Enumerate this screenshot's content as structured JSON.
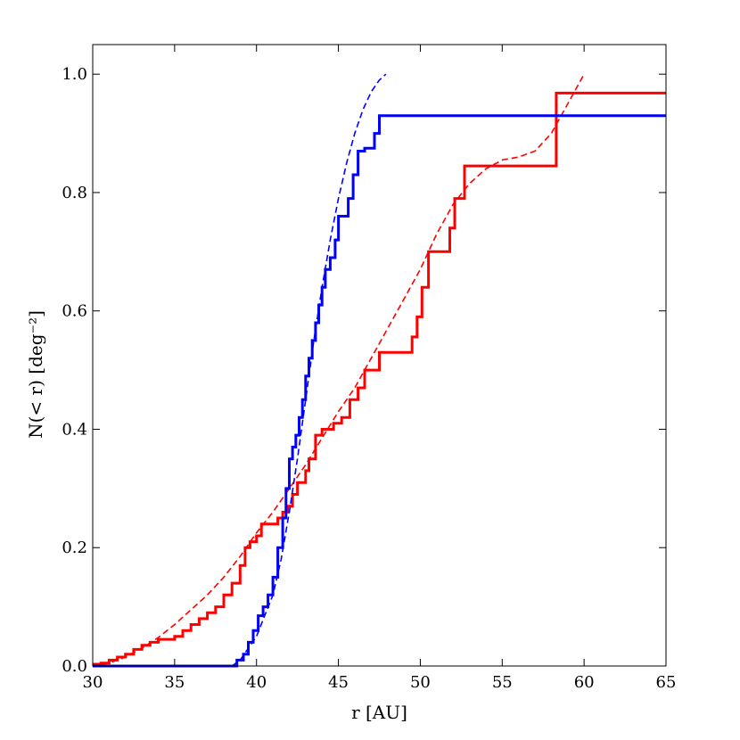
{
  "chart_data": {
    "type": "line",
    "xlabel": "r [AU]",
    "ylabel": "N(< r) [deg⁻²]",
    "xlim": [
      30,
      65
    ],
    "ylim": [
      0,
      1.05
    ],
    "xticks": [
      30,
      35,
      40,
      45,
      50,
      55,
      60,
      65
    ],
    "yticks": [
      0.0,
      0.2,
      0.4,
      0.6,
      0.8,
      1.0
    ],
    "xtick_labels": [
      "30",
      "35",
      "40",
      "45",
      "50",
      "55",
      "60",
      "65"
    ],
    "ytick_labels": [
      "0.0",
      "0.2",
      "0.4",
      "0.6",
      "0.8",
      "1.0"
    ],
    "grid": false,
    "series": [
      {
        "color": "#ff0000",
        "style": "steps-solid",
        "x": [
          30.0,
          30.5,
          31.0,
          31.5,
          32.0,
          32.5,
          33.0,
          33.5,
          34.0,
          34.5,
          35.0,
          35.5,
          36.0,
          36.5,
          37.0,
          37.5,
          38.0,
          38.5,
          39.0,
          39.3,
          39.6,
          40.0,
          40.3,
          40.7,
          41.0,
          41.3,
          41.6,
          41.9,
          42.2,
          42.5,
          43.0,
          43.2,
          43.6,
          44.0,
          44.7,
          45.2,
          45.7,
          46.2,
          46.6,
          47.5,
          49.5,
          49.8,
          50.1,
          50.5,
          51.8,
          52.1,
          52.7,
          58.3,
          65.0
        ],
        "y": [
          0.003,
          0.005,
          0.01,
          0.015,
          0.02,
          0.028,
          0.035,
          0.04,
          0.045,
          0.045,
          0.05,
          0.06,
          0.07,
          0.08,
          0.09,
          0.1,
          0.12,
          0.14,
          0.17,
          0.2,
          0.21,
          0.22,
          0.24,
          0.24,
          0.24,
          0.25,
          0.26,
          0.27,
          0.29,
          0.31,
          0.33,
          0.35,
          0.39,
          0.4,
          0.41,
          0.42,
          0.45,
          0.47,
          0.5,
          0.53,
          0.556,
          0.59,
          0.64,
          0.7,
          0.74,
          0.79,
          0.845,
          0.968,
          0.968
        ]
      },
      {
        "color": "#ff0000",
        "style": "dashed",
        "x": [
          30,
          31,
          32,
          33,
          34,
          35,
          36,
          37,
          38,
          39,
          40,
          41,
          42,
          43,
          44,
          45,
          46,
          47,
          48,
          49,
          50,
          51,
          52,
          53,
          54,
          55,
          56,
          57,
          58,
          59,
          60
        ],
        "y": [
          0.0,
          0.005,
          0.015,
          0.03,
          0.048,
          0.07,
          0.095,
          0.12,
          0.15,
          0.185,
          0.225,
          0.26,
          0.3,
          0.34,
          0.385,
          0.43,
          0.47,
          0.52,
          0.57,
          0.62,
          0.67,
          0.73,
          0.78,
          0.815,
          0.84,
          0.855,
          0.86,
          0.87,
          0.9,
          0.95,
          1.0
        ]
      },
      {
        "color": "#0000ff",
        "style": "steps-solid",
        "x": [
          30.0,
          38.6,
          38.8,
          39.2,
          39.5,
          39.8,
          40.1,
          40.4,
          40.7,
          41.0,
          41.3,
          41.6,
          41.8,
          42.0,
          42.2,
          42.4,
          42.6,
          42.8,
          43.0,
          43.2,
          43.4,
          43.6,
          43.8,
          44.0,
          44.2,
          44.5,
          44.8,
          45.0,
          45.3,
          45.6,
          45.9,
          46.2,
          46.6,
          47.2,
          47.5,
          65.0
        ],
        "y": [
          0.0,
          0.0,
          0.01,
          0.02,
          0.04,
          0.06,
          0.085,
          0.1,
          0.12,
          0.15,
          0.2,
          0.25,
          0.3,
          0.35,
          0.37,
          0.39,
          0.42,
          0.45,
          0.49,
          0.52,
          0.55,
          0.58,
          0.61,
          0.64,
          0.67,
          0.69,
          0.72,
          0.76,
          0.76,
          0.79,
          0.83,
          0.87,
          0.875,
          0.9,
          0.93,
          0.93
        ]
      },
      {
        "color": "#0000ff",
        "style": "dashed",
        "x": [
          38.5,
          39,
          40,
          41,
          41.5,
          42,
          42.5,
          43,
          43.5,
          44,
          44.5,
          45,
          45.5,
          46,
          46.5,
          47,
          47.5,
          47.9
        ],
        "y": [
          0.0,
          0.01,
          0.05,
          0.12,
          0.18,
          0.26,
          0.35,
          0.45,
          0.55,
          0.64,
          0.72,
          0.79,
          0.85,
          0.9,
          0.94,
          0.97,
          0.99,
          1.0
        ]
      }
    ]
  }
}
